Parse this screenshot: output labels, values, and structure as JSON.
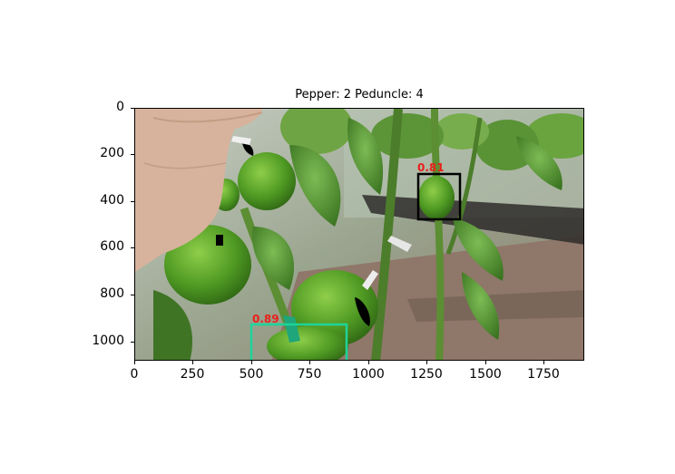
{
  "figure": {
    "title": "Pepper: 2 Peduncle: 4",
    "yticks": [
      "0",
      "200",
      "400",
      "600",
      "800",
      "1000"
    ],
    "xticks": [
      "0",
      "250",
      "500",
      "750",
      "1000",
      "1250",
      "1500",
      "1750"
    ]
  },
  "detections": [
    {
      "score_label": "0.81",
      "color": "#000000"
    },
    {
      "score_label": "0.89",
      "color": "#1fd39a"
    }
  ],
  "colors": {
    "foliage": "#4f8f2c",
    "pepper": "#5aa12d",
    "soil": "#8a7466",
    "box_black": "#000000",
    "box_teal": "#1fd39a",
    "label_red": "#e8211b"
  }
}
